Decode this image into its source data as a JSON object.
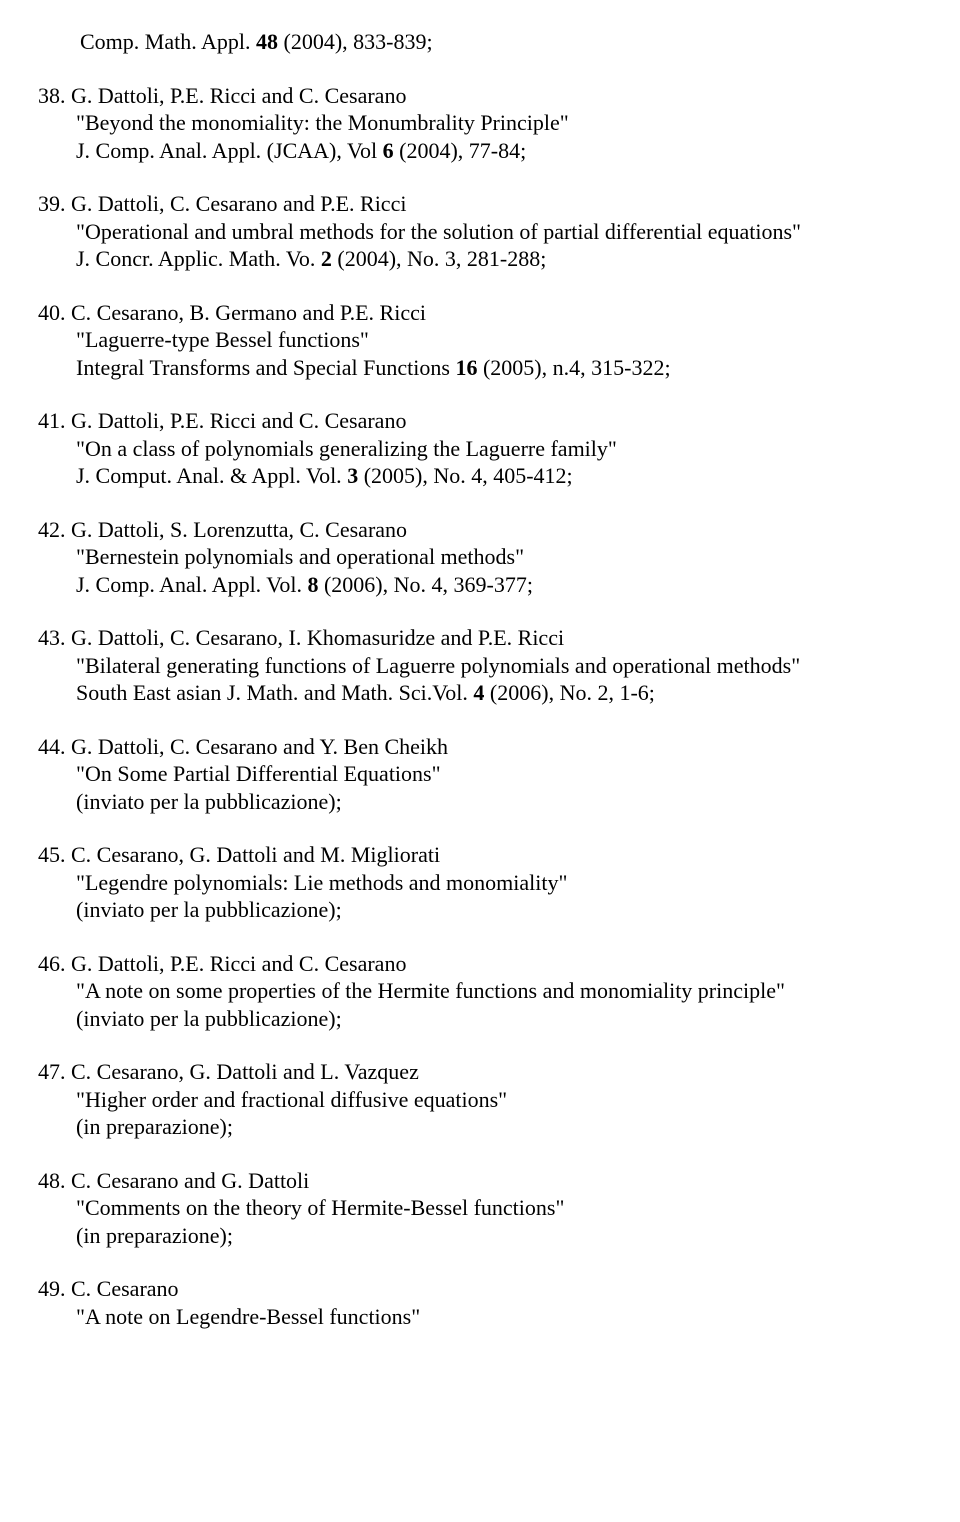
{
  "text_color": "#000000",
  "background_color": "#ffffff",
  "font_family": "Times New Roman",
  "base_fontsize": 22,
  "top_line": {
    "prefix": "Comp. Math. Appl. ",
    "vol": "48",
    "suffix": " (2004), 833-839;"
  },
  "entries": [
    {
      "num": "38.",
      "authors": " G. Dattoli, P.E. Ricci and C. Cesarano",
      "title": "\"Beyond the monomiality: the Monumbrality Principle\"",
      "journal_parts": [
        {
          "text": " J. Comp. Anal. Appl. (JCAA), Vol ",
          "bold": false
        },
        {
          "text": "6",
          "bold": true
        },
        {
          "text": " (2004), 77-84;",
          "bold": false
        }
      ]
    },
    {
      "num": "39.",
      "authors": " G. Dattoli, C. Cesarano and P.E. Ricci",
      "title": "\"Operational and umbral methods for the solution of  partial differential equations\"",
      "journal_parts": [
        {
          "text": " J. Concr. Applic. Math. Vo. ",
          "bold": false
        },
        {
          "text": "2",
          "bold": true
        },
        {
          "text": " (2004), No. 3, 281-288;",
          "bold": false
        }
      ]
    },
    {
      "num": "40.",
      "authors": " C. Cesarano, B. Germano and P.E. Ricci",
      "title": "\"Laguerre-type Bessel functions\"",
      "journal_parts": [
        {
          "text": " Integral Transforms and Special Functions ",
          "bold": false
        },
        {
          "text": "16",
          "bold": true
        },
        {
          "text": " (2005), n.4, 315-322;",
          "bold": false
        }
      ]
    },
    {
      "num": "41.",
      "authors": " G. Dattoli, P.E. Ricci and C. Cesarano",
      "title": "\"On a class of polynomials generalizing the Laguerre family\"",
      "journal_parts": [
        {
          "text": " J. Comput. Anal. &  Appl. Vol. ",
          "bold": false
        },
        {
          "text": "3",
          "bold": true
        },
        {
          "text": " (2005), No. 4, 405-412;",
          "bold": false
        }
      ]
    },
    {
      "num": "42.",
      "authors": " G. Dattoli, S. Lorenzutta, C. Cesarano",
      "title": "\"Bernestein polynomials and operational methods\"",
      "journal_parts": [
        {
          "text": " J. Comp. Anal. Appl. Vol. ",
          "bold": false
        },
        {
          "text": "8",
          "bold": true
        },
        {
          "text": " (2006), No. 4, 369-377;",
          "bold": false
        }
      ]
    },
    {
      "num": "43.",
      "authors": " G. Dattoli, C. Cesarano, I. Khomasuridze and P.E. Ricci",
      "title": "\"Bilateral generating functions of Laguerre polynomials and operational methods\"",
      "journal_parts": [
        {
          "text": " South East asian J. Math. and Math. Sci.Vol. ",
          "bold": false
        },
        {
          "text": "4",
          "bold": true
        },
        {
          "text": " (2006), No. 2, 1-6;",
          "bold": false
        }
      ]
    },
    {
      "num": "44.",
      "authors": " G. Dattoli, C. Cesarano and Y. Ben Cheikh",
      "title": "\"On Some Partial Differential Equations\"",
      "note": " (inviato per la pubblicazione);"
    },
    {
      "num": "45.",
      "authors": " C. Cesarano, G. Dattoli and M. Migliorati",
      "title": "\"Legendre polynomials: Lie methods and monomiality\"",
      "note": "  (inviato per la pubblicazione);"
    },
    {
      "num": "46.",
      "authors": " G. Dattoli, P.E. Ricci and C. Cesarano",
      "title": "\"A note on some properties of the Hermite functions and monomiality principle\"",
      "note": " (inviato per la pubblicazione);"
    },
    {
      "num": "47.",
      "authors": " C. Cesarano, G. Dattoli and L. Vazquez",
      "title": "\"Higher order and fractional diffusive equations\"",
      "note": " (in preparazione);"
    },
    {
      "num": "48.",
      "authors": " C. Cesarano and G. Dattoli",
      "title": "\"Comments on the theory of Hermite-Bessel functions\"",
      "note": " (in preparazione);"
    },
    {
      "num": "49.",
      "authors": " C. Cesarano",
      "title": "\"A note on Legendre-Bessel functions\""
    }
  ]
}
